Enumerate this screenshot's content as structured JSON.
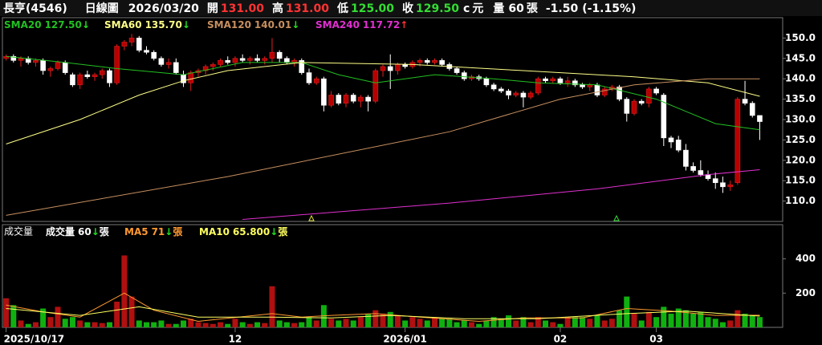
{
  "header": {
    "name": "長亨(4546)",
    "period": "日線圖",
    "date": "2026/03/20",
    "fields": [
      {
        "label": "開",
        "value": "131.00",
        "color": "#ff3333"
      },
      {
        "label": "高",
        "value": "131.00",
        "color": "#ff3333"
      },
      {
        "label": "低",
        "value": "125.00",
        "color": "#33dd33"
      },
      {
        "label": "收",
        "value": "129.50",
        "color": "#33dd33"
      }
    ],
    "unit_mark": "c",
    "currency": "元",
    "volume_label": "量",
    "volume": "60",
    "volume_unit": "張",
    "change": "-1.50",
    "change_pct": "(-1.15%)"
  },
  "chart_data": [
    {
      "type": "candlestick",
      "up_color": "#b80000",
      "down_color": "#ffffff",
      "xlim": [
        -0.5,
        105.1
      ],
      "xticks": [
        {
          "value": 0,
          "label": "2025/10/17"
        },
        {
          "value": 31,
          "label": "12"
        },
        {
          "value": 54,
          "label": "2026/01"
        },
        {
          "value": 75,
          "label": "02"
        },
        {
          "value": 88,
          "label": "03"
        }
      ],
      "ylim": [
        105,
        155
      ],
      "yticks": [
        {
          "value": 110,
          "label": "110.0"
        },
        {
          "value": 115,
          "label": "115.0"
        },
        {
          "value": 120,
          "label": "120.0"
        },
        {
          "value": 125,
          "label": "125.0"
        },
        {
          "value": 130,
          "label": "130.0"
        },
        {
          "value": 135,
          "label": "135.0"
        },
        {
          "value": 140,
          "label": "140.0"
        },
        {
          "value": 145,
          "label": "145.0"
        },
        {
          "value": 150,
          "label": "150.0"
        }
      ],
      "ohlc": [
        [
          145,
          146,
          144.5,
          145.5
        ],
        [
          145.5,
          146,
          144,
          144.5
        ],
        [
          144.5,
          145.5,
          143,
          145
        ],
        [
          145,
          145.5,
          143.5,
          144
        ],
        [
          144,
          145,
          143,
          144.5
        ],
        [
          144.5,
          145,
          141,
          142
        ],
        [
          142,
          143,
          140.5,
          142.5
        ],
        [
          142.5,
          144.5,
          142,
          144
        ],
        [
          144,
          144.5,
          141,
          141.5
        ],
        [
          141,
          141.5,
          138,
          138.5
        ],
        [
          138.5,
          141.5,
          137.5,
          141
        ],
        [
          141,
          142,
          140,
          140.5
        ],
        [
          140.5,
          141.5,
          139.5,
          141
        ],
        [
          141,
          142.5,
          140,
          142
        ],
        [
          142,
          142.5,
          138,
          139
        ],
        [
          139,
          148.5,
          138.5,
          148
        ],
        [
          148,
          149.5,
          147,
          149
        ],
        [
          149,
          151,
          148,
          150
        ],
        [
          150,
          150.5,
          146.5,
          147
        ],
        [
          147,
          148,
          146,
          146.5
        ],
        [
          146.5,
          147,
          144.5,
          145
        ],
        [
          145,
          145.5,
          143,
          143.5
        ],
        [
          143.5,
          145,
          142.5,
          144
        ],
        [
          144,
          145,
          141,
          141.5
        ],
        [
          141,
          142,
          138,
          139
        ],
        [
          139,
          142,
          137,
          141.5
        ],
        [
          141.5,
          142.5,
          140.5,
          142
        ],
        [
          142,
          143.5,
          141,
          143
        ],
        [
          143,
          144,
          142,
          143.5
        ],
        [
          143.5,
          145,
          143,
          144.5
        ],
        [
          144.5,
          145.5,
          143.5,
          144
        ],
        [
          144,
          145.5,
          143,
          145
        ],
        [
          145,
          146,
          144,
          144.5
        ],
        [
          144.5,
          145.5,
          143.5,
          145
        ],
        [
          145,
          146,
          144,
          144.5
        ],
        [
          144.5,
          145.5,
          143.5,
          145
        ],
        [
          145,
          150,
          144,
          146.5
        ],
        [
          146.5,
          147,
          144,
          145
        ],
        [
          145,
          145.5,
          143.5,
          144
        ],
        [
          144,
          145,
          143,
          144.5
        ],
        [
          144.5,
          145,
          141,
          141.5
        ],
        [
          141.5,
          142.5,
          138.5,
          139
        ],
        [
          139,
          140.5,
          138.5,
          140
        ],
        [
          140,
          140.5,
          132,
          133.5
        ],
        [
          133.5,
          137,
          133,
          136
        ],
        [
          136,
          136.5,
          133.5,
          134
        ],
        [
          134,
          136.5,
          133,
          136
        ],
        [
          136,
          136.5,
          134,
          134.5
        ],
        [
          134.5,
          136,
          133,
          135.5
        ],
        [
          135.5,
          136,
          132,
          134.5
        ],
        [
          134.5,
          142.5,
          134,
          142
        ],
        [
          142,
          143.5,
          140.5,
          143
        ],
        [
          143,
          146,
          137.5,
          142
        ],
        [
          142,
          144,
          141,
          143.5
        ],
        [
          143.5,
          144,
          142.5,
          143
        ],
        [
          143,
          144.5,
          142.5,
          144
        ],
        [
          144,
          145,
          143,
          144.5
        ],
        [
          144.5,
          145,
          143.5,
          144
        ],
        [
          144,
          145,
          143.5,
          144.5
        ],
        [
          144.5,
          145,
          143,
          143.5
        ],
        [
          143.5,
          144,
          142,
          142.5
        ],
        [
          142.5,
          143,
          141,
          141.5
        ],
        [
          141.5,
          142,
          139.5,
          140
        ],
        [
          140,
          141,
          139.5,
          140.5
        ],
        [
          140.5,
          141,
          139.5,
          140
        ],
        [
          140,
          140.5,
          138,
          138.5
        ],
        [
          138.5,
          139,
          137,
          137.5
        ],
        [
          137.5,
          138,
          136.5,
          137
        ],
        [
          137,
          137.5,
          135,
          136
        ],
        [
          136,
          137,
          135.5,
          136.5
        ],
        [
          136.5,
          137,
          133,
          135.5
        ],
        [
          135.5,
          137,
          135,
          136.5
        ],
        [
          136.5,
          140.5,
          136,
          140
        ],
        [
          140,
          140.5,
          139,
          139.5
        ],
        [
          139.5,
          140.5,
          139,
          140
        ],
        [
          140,
          140.5,
          138.5,
          139
        ],
        [
          139,
          140.5,
          138,
          139.5
        ],
        [
          139.5,
          140,
          138,
          138.5
        ],
        [
          138.5,
          139,
          137.5,
          138
        ],
        [
          138,
          139,
          137,
          138.5
        ],
        [
          138.5,
          139,
          135.5,
          136
        ],
        [
          136,
          138,
          135.5,
          137.5
        ],
        [
          137.5,
          138.5,
          137,
          138
        ],
        [
          138,
          138.5,
          134.5,
          135
        ],
        [
          135,
          135.5,
          129.5,
          131.5
        ],
        [
          131.5,
          135,
          131,
          134.5
        ],
        [
          134.5,
          135,
          133.5,
          134
        ],
        [
          134,
          138,
          133,
          137.5
        ],
        [
          137.5,
          138,
          136,
          136.5
        ],
        [
          136,
          136.5,
          123.5,
          125.5
        ],
        [
          125.5,
          126,
          123,
          124.5
        ],
        [
          125,
          126,
          122,
          122.5
        ],
        [
          122.5,
          124,
          117.5,
          118.5
        ],
        [
          118.5,
          119.5,
          117,
          117.5
        ],
        [
          117.5,
          120,
          116,
          116.5
        ],
        [
          116.5,
          117.5,
          115,
          115.5
        ],
        [
          115.5,
          117,
          113,
          114.5
        ],
        [
          114.5,
          116,
          112,
          113.5
        ],
        [
          113.5,
          115,
          112.5,
          114
        ],
        [
          114.5,
          135.5,
          114,
          135
        ],
        [
          135,
          139.5,
          133.5,
          134
        ],
        [
          134,
          134.5,
          130.5,
          131
        ],
        [
          131,
          131,
          125,
          129.5
        ]
      ],
      "series": [
        {
          "name": "SMA20",
          "color": "#22c022",
          "legend_value": "127.50",
          "trend": "↓",
          "x": [
            0,
            8,
            15,
            24,
            32,
            40,
            45,
            50,
            58,
            66,
            72,
            80,
            88,
            92,
            96,
            102
          ],
          "values": [
            145.5,
            144,
            142.5,
            141,
            144,
            144,
            141,
            139,
            141,
            140,
            139,
            138.5,
            135,
            132,
            129,
            127.5
          ]
        },
        {
          "name": "SMA60",
          "color": "#ffff88",
          "legend_value": "135.70",
          "trend": "↓",
          "x": [
            0,
            10,
            18,
            24,
            30,
            40,
            55,
            70,
            85,
            95,
            102
          ],
          "values": [
            124,
            130,
            136,
            139.5,
            142,
            144,
            143.5,
            142,
            140.5,
            139,
            135.7
          ]
        },
        {
          "name": "SMA120",
          "color": "#c89060",
          "legend_value": "140.01",
          "trend": "↓",
          "x": [
            0,
            30,
            60,
            75,
            85,
            95,
            102
          ],
          "values": [
            106.5,
            116,
            127,
            135,
            138.5,
            140,
            140
          ]
        },
        {
          "name": "SMA240",
          "color": "#e030d0",
          "legend_value": "117.72",
          "trend": "↑",
          "x": [
            32,
            60,
            80,
            95,
            102
          ],
          "values": [
            105.5,
            109.5,
            113,
            116.5,
            117.7
          ]
        }
      ]
    },
    {
      "type": "bar",
      "title": "成交量",
      "up_color": "#b01010",
      "down_color": "#10b010",
      "xlim": [
        -0.5,
        105.1
      ],
      "ylim": [
        0,
        600
      ],
      "yticks": [
        200,
        400
      ],
      "values": [
        170,
        130,
        40,
        20,
        30,
        110,
        60,
        120,
        50,
        60,
        40,
        30,
        30,
        25,
        30,
        150,
        420,
        180,
        40,
        30,
        30,
        40,
        20,
        20,
        40,
        50,
        30,
        25,
        20,
        30,
        20,
        50,
        30,
        20,
        30,
        25,
        240,
        40,
        30,
        25,
        30,
        60,
        40,
        130,
        50,
        40,
        50,
        40,
        60,
        80,
        100,
        80,
        90,
        70,
        40,
        60,
        50,
        40,
        60,
        50,
        50,
        30,
        40,
        30,
        20,
        40,
        60,
        50,
        70,
        40,
        60,
        30,
        60,
        40,
        30,
        20,
        60,
        60,
        60,
        50,
        70,
        40,
        50,
        100,
        180,
        80,
        40,
        90,
        60,
        120,
        80,
        110,
        100,
        80,
        90,
        60,
        50,
        30,
        40,
        100,
        80,
        70,
        60
      ],
      "legend": [
        {
          "name": "成交量",
          "legend_value": "60",
          "trend": "↓",
          "unit": "張",
          "color": "#ffffff"
        }
      ],
      "series": [
        {
          "name": "MA5",
          "color": "#ff9930",
          "legend_value": "71",
          "trend": "↓",
          "unit": "張",
          "x": [
            0,
            5,
            10,
            16,
            20,
            26,
            36,
            40,
            44,
            50,
            56,
            64,
            70,
            78,
            84,
            90,
            96,
            102
          ],
          "values": [
            130,
            90,
            60,
            200,
            100,
            35,
            80,
            60,
            70,
            80,
            60,
            35,
            55,
            55,
            110,
            95,
            70,
            71
          ]
        },
        {
          "name": "MA10",
          "color": "#ffff60",
          "legend_value": "65.800",
          "trend": "↓",
          "unit": "張",
          "x": [
            0,
            10,
            18,
            26,
            36,
            44,
            52,
            62,
            72,
            84,
            92,
            102
          ],
          "values": [
            110,
            70,
            120,
            60,
            60,
            55,
            70,
            50,
            50,
            80,
            95,
            65.8
          ]
        }
      ]
    }
  ]
}
